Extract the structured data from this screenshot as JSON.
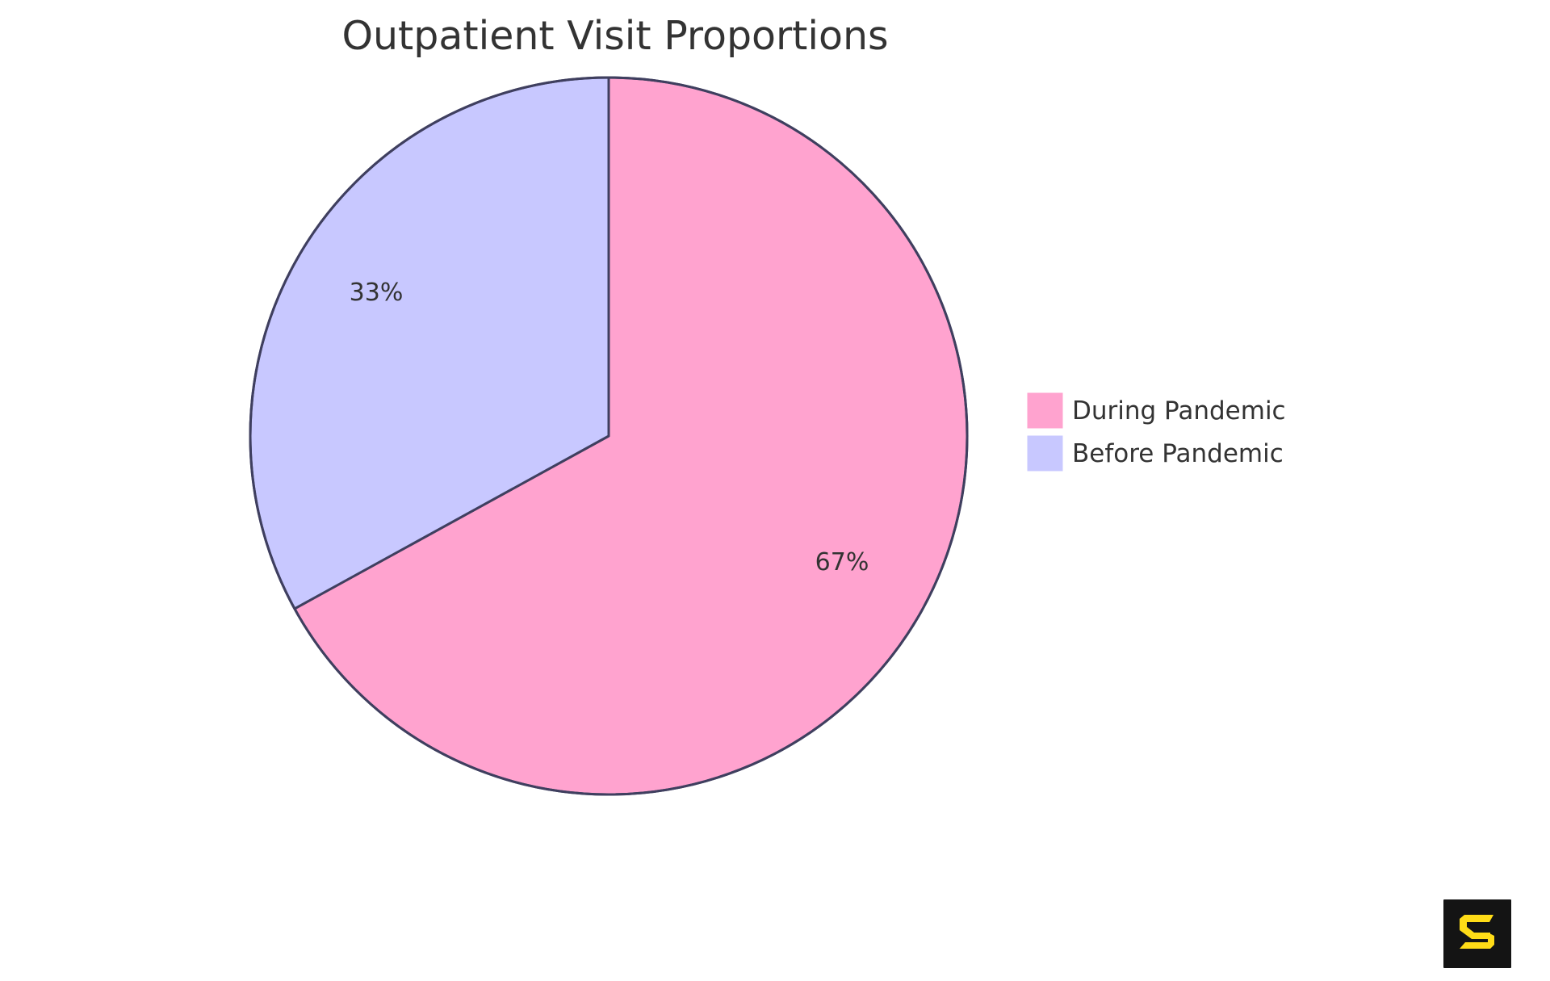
{
  "chart_data": {
    "type": "pie",
    "title": "Outpatient Visit Proportions",
    "categories": [
      "During Pandemic",
      "Before Pandemic"
    ],
    "values": [
      67,
      33
    ],
    "labels": [
      "67%",
      "33%"
    ],
    "colors": [
      "#FFA3CF",
      "#C8C8FF"
    ],
    "stroke_color": "#3F3F5F",
    "legend_position": "right",
    "start_angle": "12 o'clock",
    "direction": "During Pandemic clockwise from top; Before Pandemic remainder"
  },
  "legend": {
    "items": [
      {
        "label": "During Pandemic",
        "color": "#FFA3CF"
      },
      {
        "label": "Before Pandemic",
        "color": "#C8C8FF"
      }
    ]
  },
  "logo": {
    "icon": "s-logo-icon",
    "bg": "#141414",
    "fg": "#FFDC17"
  }
}
